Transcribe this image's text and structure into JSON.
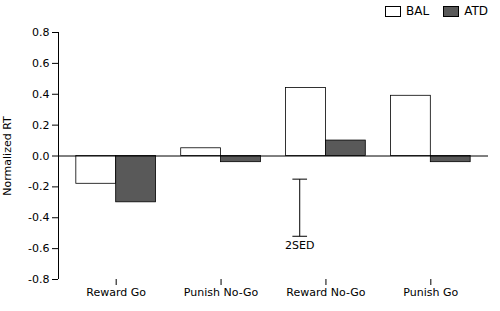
{
  "chart_data": {
    "type": "bar",
    "categories": [
      "Reward Go",
      "Punish No-Go",
      "Reward No-Go",
      "Punish Go"
    ],
    "series": [
      {
        "name": "BAL",
        "color": "#ffffff",
        "values": [
          -0.18,
          0.05,
          0.44,
          0.39
        ]
      },
      {
        "name": "ATD",
        "color": "#595959",
        "values": [
          -0.3,
          -0.04,
          0.1,
          -0.04
        ]
      }
    ],
    "ylabel": "Normalized RT",
    "ylim": [
      -0.8,
      0.8
    ],
    "yticks": [
      -0.8,
      -0.6,
      -0.4,
      -0.2,
      {
        "value": 0,
        "label": "0.0"
      },
      0.2,
      0.4,
      0.6,
      0.8
    ],
    "legend": "upper right",
    "error_bar": {
      "label": "2SED",
      "low": -0.52,
      "high": -0.15
    }
  }
}
